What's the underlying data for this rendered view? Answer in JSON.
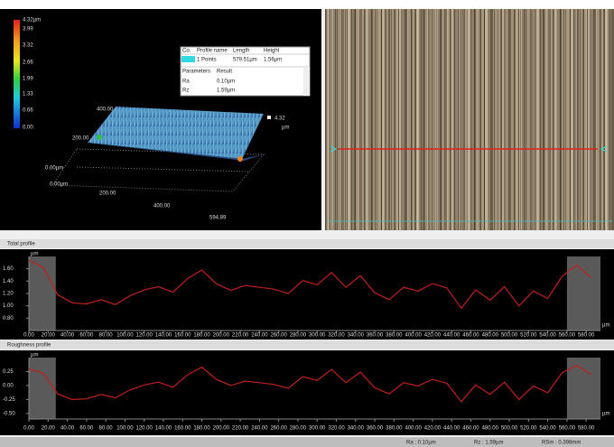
{
  "view3d": {
    "colorbar": [
      "4.32µm",
      "3.99",
      "3.32",
      "2.66",
      "1.99",
      "1.33",
      "0.66",
      "0.00"
    ],
    "axis_labels": [
      "400.00",
      "200.00",
      "0.00µm",
      "0.00µm",
      "200.00",
      "400.00",
      "594.89"
    ],
    "height_label": "4.32",
    "height_unit": "µm"
  },
  "table": {
    "header": [
      "Co.",
      "Profile name",
      "Length",
      "Height"
    ],
    "row": [
      "1 Points",
      "579.51µm",
      "1.56µm"
    ],
    "param_header": [
      "Parameters",
      "Result"
    ],
    "params": [
      [
        "Ra",
        "0.10µm"
      ],
      [
        "Rz",
        "1.59µm"
      ]
    ]
  },
  "x_axis": {
    "unit": "µm",
    "xlim": [
      0,
      594.89
    ],
    "xticks": [
      {
        "value": 0,
        "label": "0.00"
      },
      {
        "value": 20,
        "label": "20.00"
      },
      {
        "value": 40,
        "label": "40.00"
      },
      {
        "value": 60,
        "label": "60.00"
      },
      {
        "value": 80,
        "label": "80.00"
      },
      {
        "value": 100,
        "label": "100.00"
      },
      {
        "value": 120,
        "label": "120.00"
      },
      {
        "value": 140,
        "label": "140.00"
      },
      {
        "value": 160,
        "label": "160.00"
      },
      {
        "value": 180,
        "label": "180.00"
      },
      {
        "value": 200,
        "label": "200.00"
      },
      {
        "value": 220,
        "label": "220.00"
      },
      {
        "value": 240,
        "label": "240.00"
      },
      {
        "value": 260,
        "label": "260.00"
      },
      {
        "value": 280,
        "label": "280.00"
      },
      {
        "value": 300,
        "label": "300.00"
      },
      {
        "value": 320,
        "label": "320.00"
      },
      {
        "value": 340,
        "label": "340.00"
      },
      {
        "value": 360,
        "label": "360.00"
      },
      {
        "value": 380,
        "label": "380.00"
      },
      {
        "value": 400,
        "label": "400.00"
      },
      {
        "value": 420,
        "label": "420.00"
      },
      {
        "value": 440,
        "label": "440.00"
      },
      {
        "value": 460,
        "label": "460.00"
      },
      {
        "value": 480,
        "label": "480.00"
      },
      {
        "value": 500,
        "label": "500.00"
      },
      {
        "value": 520,
        "label": "520.00"
      },
      {
        "value": 540,
        "label": "540.00"
      },
      {
        "value": 560,
        "label": "560.00"
      },
      {
        "value": 580,
        "label": "580.00"
      }
    ],
    "x": [
      0,
      15,
      30,
      45,
      60,
      75,
      90,
      105,
      120,
      135,
      150,
      165,
      180,
      195,
      210,
      225,
      240,
      255,
      270,
      285,
      300,
      315,
      330,
      345,
      360,
      375,
      390,
      405,
      420,
      435,
      450,
      465,
      480,
      495,
      510,
      525,
      540,
      555,
      570,
      585
    ]
  },
  "total_profile": {
    "title": "Total profile",
    "unit": "µm",
    "ylim": [
      0.6,
      1.8
    ],
    "yticks": [
      {
        "value": 0.8,
        "label": "0.80"
      },
      {
        "value": 1.0,
        "label": "1.00"
      },
      {
        "value": 1.2,
        "label": "1.20"
      },
      {
        "value": 1.4,
        "label": "1.40"
      },
      {
        "value": 1.6,
        "label": "1.60"
      }
    ],
    "excluded": [
      [
        0,
        28
      ],
      [
        560,
        594.89
      ]
    ],
    "color": "#c0201c",
    "values": [
      1.74,
      1.62,
      1.18,
      1.05,
      1.03,
      1.1,
      1.02,
      1.16,
      1.26,
      1.31,
      1.22,
      1.44,
      1.58,
      1.36,
      1.25,
      1.33,
      1.3,
      1.27,
      1.2,
      1.41,
      1.34,
      1.54,
      1.3,
      1.49,
      1.21,
      1.1,
      1.3,
      1.24,
      1.36,
      1.29,
      0.96,
      1.26,
      1.09,
      1.31,
      1.0,
      1.24,
      1.12,
      1.48,
      1.66,
      1.46
    ]
  },
  "roughness_profile": {
    "title": "Roughness profile",
    "unit": "µm",
    "ylim": [
      -0.6,
      0.5
    ],
    "yticks": [
      {
        "value": -0.5,
        "label": "-0.50"
      },
      {
        "value": -0.25,
        "label": "-0.25"
      },
      {
        "value": 0,
        "label": "0.00"
      },
      {
        "value": 0.25,
        "label": "0.25"
      }
    ],
    "excluded": [
      [
        0,
        28
      ],
      [
        560,
        594.89
      ]
    ],
    "color": "#c0201c",
    "values": [
      0.3,
      0.22,
      -0.15,
      -0.25,
      -0.24,
      -0.16,
      -0.22,
      -0.08,
      0.01,
      0.06,
      -0.03,
      0.19,
      0.33,
      0.11,
      0.0,
      0.08,
      0.05,
      0.02,
      -0.05,
      0.16,
      0.09,
      0.29,
      0.05,
      0.24,
      -0.04,
      -0.15,
      0.05,
      -0.01,
      0.11,
      0.04,
      -0.29,
      0.01,
      -0.16,
      0.06,
      -0.25,
      -0.01,
      -0.13,
      0.23,
      0.36,
      0.2
    ]
  },
  "status": [
    "Ra : 0.10µm",
    "Rz : 1.59µm",
    "RSm : 0.398mm"
  ]
}
